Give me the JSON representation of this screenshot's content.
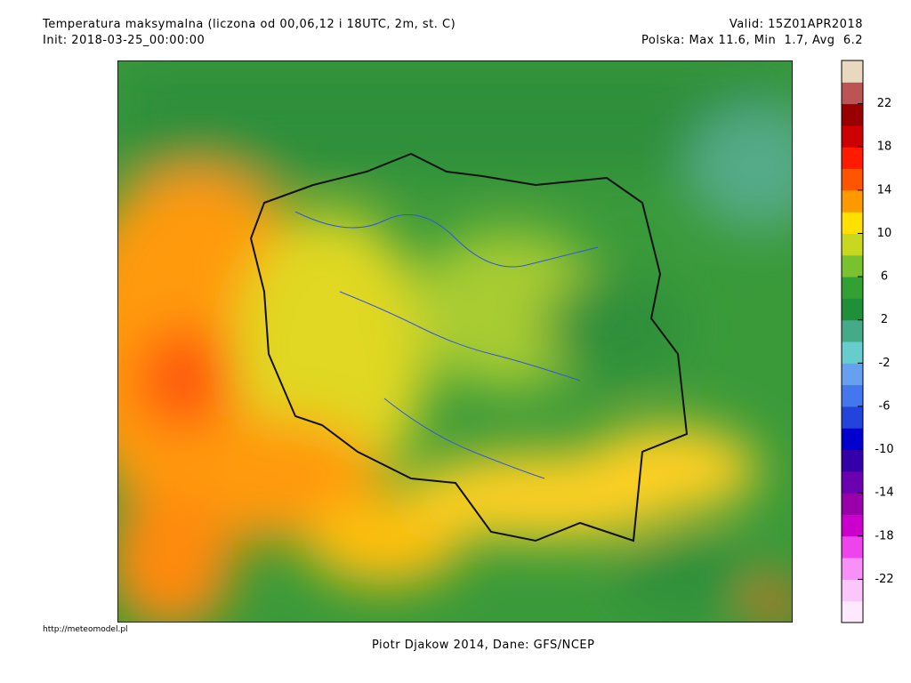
{
  "header": {
    "title": "Temperatura maksymalna (liczona od 00,06,12 i 18UTC, 2m, st. C)",
    "init": "Init: 2018-03-25_00:00:00",
    "valid": "Valid: 15Z01APR2018",
    "stats": "Polska: Max 11.6, Min  1.7, Avg  6.2"
  },
  "colorbar": {
    "limits": [
      -26,
      26
    ],
    "ticks": [
      -22,
      -18,
      -14,
      -10,
      -6,
      -2,
      2,
      6,
      10,
      14,
      18,
      22
    ],
    "colors": [
      "#fde8fd",
      "#fbc6fb",
      "#f890f8",
      "#ee44ee",
      "#cc00cc",
      "#9900aa",
      "#6a00b0",
      "#3300aa",
      "#0000cc",
      "#2244dd",
      "#4477ee",
      "#66a0ee",
      "#66cccc",
      "#44aa88",
      "#1f8f3a",
      "#33a033",
      "#7ac130",
      "#c8d820",
      "#ffe000",
      "#ff9900",
      "#ff5500",
      "#ff1a00",
      "#cc0000",
      "#990000",
      "#bb5555",
      "#e8d8c0"
    ]
  },
  "footer": {
    "url": "http://meteomodel.pl",
    "credit": "Piotr Djakow 2014, Dane: GFS/NCEP"
  }
}
